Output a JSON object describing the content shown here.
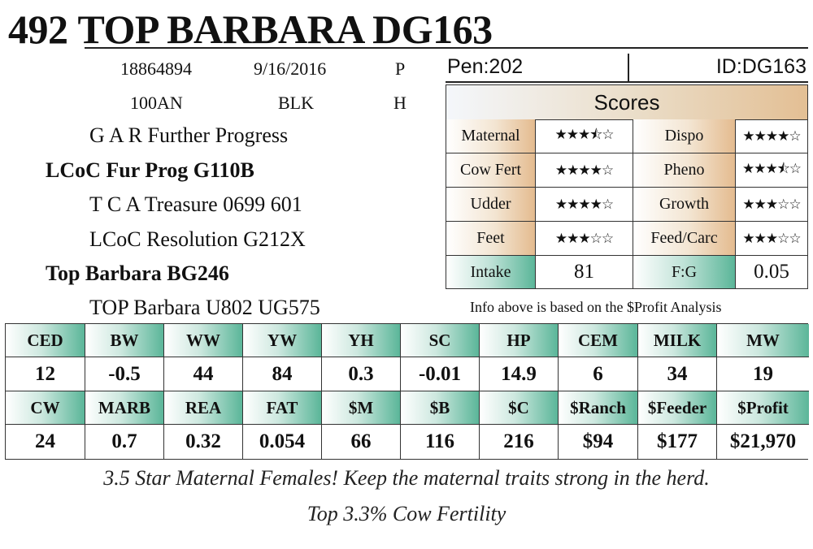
{
  "header": {
    "lot_number": "492",
    "animal_name": "TOP BARBARA DG163"
  },
  "info": {
    "registration": "18864894",
    "birth_date": "9/16/2016",
    "code1": "P",
    "breed_code": "100AN",
    "color": "BLK",
    "code2": "H"
  },
  "pedigree": {
    "sire_sire": "G A R Further Progress",
    "sire": "LCoC Fur Prog G110B",
    "sire_dam": "T C A Treasure 0699 601",
    "dam_sire": "LCoC Resolution G212X",
    "dam": "Top Barbara BG246",
    "dam_dam": "TOP Barbara U802 UG575"
  },
  "pen_id": {
    "pen": "Pen:202",
    "id": "ID:DG163"
  },
  "scores": {
    "title": "Scores",
    "rows": [
      {
        "label1": "Maternal",
        "stars1": "★★★⯪☆",
        "rating1": 3.5,
        "label2": "Dispo",
        "stars2": "★★★★☆",
        "rating2": 4
      },
      {
        "label1": "Cow Fert",
        "stars1": "★★★★☆",
        "rating1": 4,
        "label2": "Pheno",
        "stars2": "★★★⯪☆",
        "rating2": 3.5
      },
      {
        "label1": "Udder",
        "stars1": "★★★★☆",
        "rating1": 4,
        "label2": "Growth",
        "stars2": "★★★☆☆",
        "rating2": 3
      },
      {
        "label1": "Feet",
        "stars1": "★★★☆☆",
        "rating1": 3,
        "label2": "Feed/Carc",
        "stars2": "★★★☆☆",
        "rating2": 3
      }
    ],
    "intake_label": "Intake",
    "intake_value": "81",
    "fg_label": "F:G",
    "fg_value": "0.05"
  },
  "note": "Info above is based on the $Profit Analysis",
  "epds": {
    "row1": [
      {
        "label": "CED",
        "value": "12"
      },
      {
        "label": "BW",
        "value": "-0.5"
      },
      {
        "label": "WW",
        "value": "44"
      },
      {
        "label": "YW",
        "value": "84"
      },
      {
        "label": "YH",
        "value": "0.3"
      },
      {
        "label": "SC",
        "value": "-0.01"
      },
      {
        "label": "HP",
        "value": "14.9"
      },
      {
        "label": "CEM",
        "value": "6"
      },
      {
        "label": "MILK",
        "value": "34"
      },
      {
        "label": "MW",
        "value": "19"
      }
    ],
    "row2": [
      {
        "label": "CW",
        "value": "24"
      },
      {
        "label": "MARB",
        "value": "0.7"
      },
      {
        "label": "REA",
        "value": "0.32"
      },
      {
        "label": "FAT",
        "value": "0.054"
      },
      {
        "label": "$M",
        "value": "66"
      },
      {
        "label": "$B",
        "value": "116"
      },
      {
        "label": "$C",
        "value": "216"
      },
      {
        "label": "$Ranch",
        "value": "$94"
      },
      {
        "label": "$Feeder",
        "value": "$177"
      },
      {
        "label": "$Profit",
        "value": "$21,970"
      }
    ]
  },
  "taglines": {
    "line1": "3.5 Star Maternal Females! Keep the maternal traits strong in the herd.",
    "line2": "Top 3.3% Cow Fertility"
  }
}
